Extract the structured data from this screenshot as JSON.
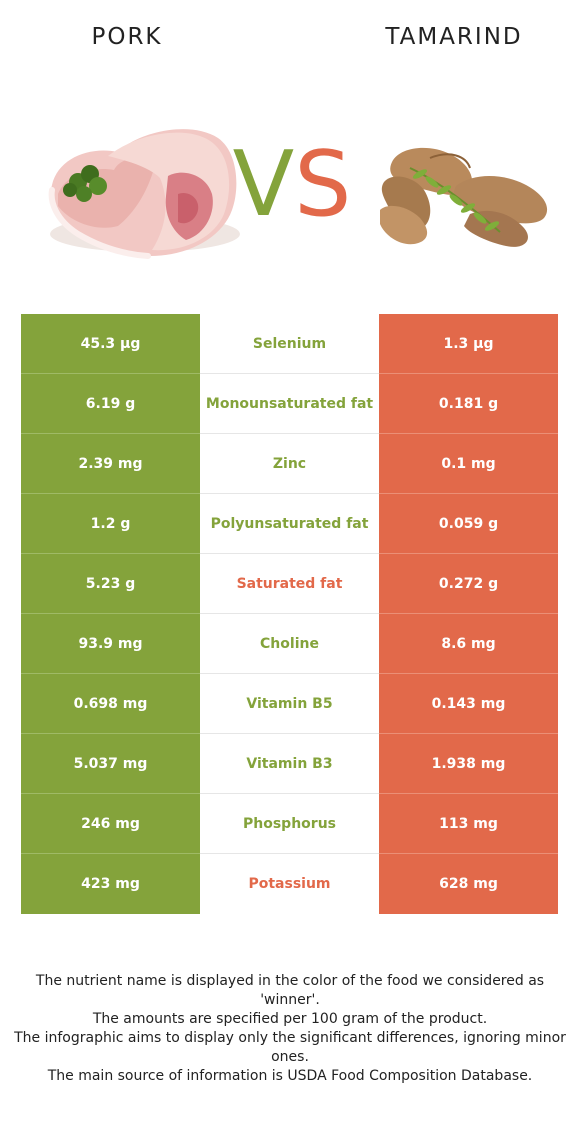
{
  "header": {
    "left_food": "PORK",
    "right_food": "TAMARIND",
    "vs_v": "V",
    "vs_s": "S"
  },
  "colors": {
    "pork": "#84a33b",
    "tamarind": "#e2694a"
  },
  "images": {
    "left": "pork-chop-with-parsley-illustration",
    "right": "tamarind-pods-with-leaves-illustration"
  },
  "nutrients": [
    {
      "name": "Selenium",
      "left": "45.3 µg",
      "right": "1.3 µg",
      "winner": "left"
    },
    {
      "name": "Monounsaturated fat",
      "left": "6.19 g",
      "right": "0.181 g",
      "winner": "left"
    },
    {
      "name": "Zinc",
      "left": "2.39 mg",
      "right": "0.1 mg",
      "winner": "left"
    },
    {
      "name": "Polyunsaturated fat",
      "left": "1.2 g",
      "right": "0.059 g",
      "winner": "left"
    },
    {
      "name": "Saturated fat",
      "left": "5.23 g",
      "right": "0.272 g",
      "winner": "right"
    },
    {
      "name": "Choline",
      "left": "93.9 mg",
      "right": "8.6 mg",
      "winner": "left"
    },
    {
      "name": "Vitamin B5",
      "left": "0.698 mg",
      "right": "0.143 mg",
      "winner": "left"
    },
    {
      "name": "Vitamin B3",
      "left": "5.037 mg",
      "right": "1.938 mg",
      "winner": "left"
    },
    {
      "name": "Phosphorus",
      "left": "246 mg",
      "right": "113 mg",
      "winner": "left"
    },
    {
      "name": "Potassium",
      "left": "423 mg",
      "right": "628 mg",
      "winner": "right"
    }
  ],
  "footer": {
    "line1": "The nutrient name is displayed in the color of the food we considered as 'winner'.",
    "line2": "The amounts are specified per 100 gram of the product.",
    "line3": "The infographic aims to display only the significant differences, ignoring minor ones.",
    "line4": "The main source of information is USDA Food Composition Database."
  }
}
